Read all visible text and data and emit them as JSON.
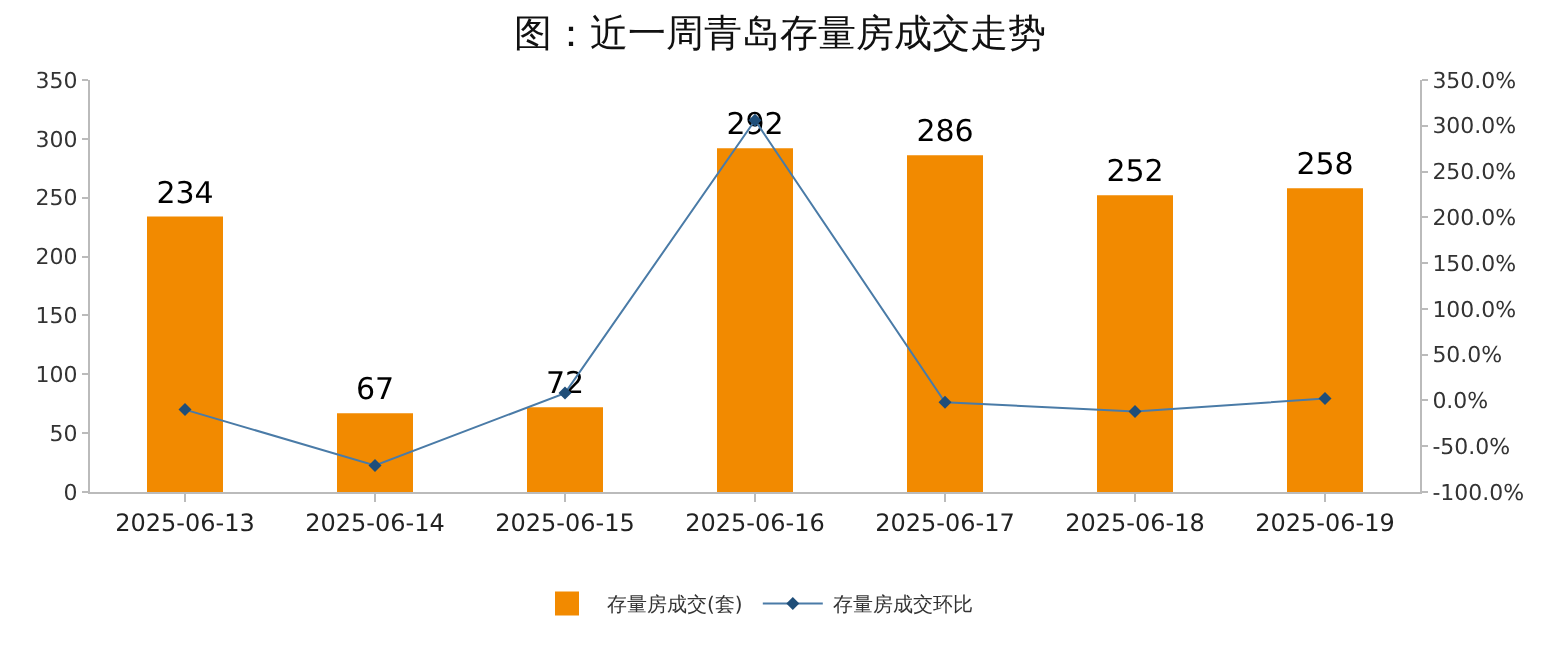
{
  "chart_data": {
    "type": "bar",
    "title": "图：近一周青岛存量房成交走势",
    "categories": [
      "2025-06-13",
      "2025-06-14",
      "2025-06-15",
      "2025-06-16",
      "2025-06-17",
      "2025-06-18",
      "2025-06-19"
    ],
    "series": [
      {
        "name": "存量房成交(套)",
        "color": "#f28a00",
        "values": [
          234,
          67,
          72,
          292,
          286,
          252,
          258
        ],
        "value_labels": [
          "234",
          "67",
          "72",
          "292",
          "286",
          "252",
          "258"
        ]
      },
      {
        "name": "存量房成交环比",
        "type": "line",
        "axis": "y2",
        "color": "#4a7ba7",
        "marker": "diamond",
        "values": [
          -10,
          -71,
          8,
          306,
          -2,
          -12,
          2
        ]
      }
    ],
    "ylim": [
      0,
      350
    ],
    "yticks": [
      0,
      50,
      100,
      150,
      200,
      250,
      300,
      350
    ],
    "y2lim": [
      -100,
      350
    ],
    "y2ticks": [
      {
        "value": -100,
        "label": "-100.0%"
      },
      {
        "value": -50,
        "label": "-50.0%"
      },
      {
        "value": 0,
        "label": "0.0%"
      },
      {
        "value": 50,
        "label": "50.0%"
      },
      {
        "value": 100,
        "label": "100.0%"
      },
      {
        "value": 150,
        "label": "150.0%"
      },
      {
        "value": 200,
        "label": "200.0%"
      },
      {
        "value": 250,
        "label": "250.0%"
      },
      {
        "value": 300,
        "label": "300.0%"
      },
      {
        "value": 350,
        "label": "350.0%"
      }
    ],
    "grid": false,
    "legend": "bottom"
  }
}
